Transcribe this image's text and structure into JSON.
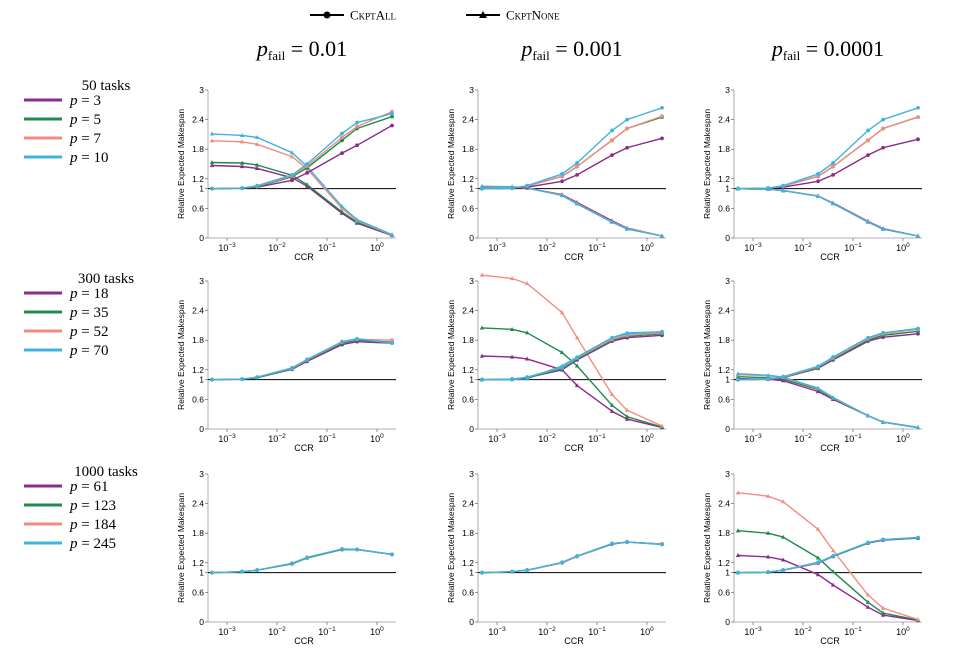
{
  "colors": {
    "p1": "#8b2b8f",
    "p2": "#1f8a4c",
    "p3": "#f28c80",
    "p4": "#3fb3e0",
    "baseline": "#000000",
    "grid": "#dddddd"
  },
  "legend": {
    "all_label": "CkptAll",
    "none_label": "CkptNone"
  },
  "columns": [
    {
      "title": "p_fail = 0.01"
    },
    {
      "title": "p_fail = 0.001"
    },
    {
      "title": "p_fail = 0.0001"
    }
  ],
  "rows": [
    {
      "title": "50 tasks",
      "p_values": [
        "p = 3",
        "p = 5",
        "p = 7",
        "p = 10"
      ]
    },
    {
      "title": "300 tasks",
      "p_values": [
        "p = 18",
        "p = 35",
        "p = 52",
        "p = 70"
      ]
    },
    {
      "title": "1000 tasks",
      "p_values": [
        "p = 61",
        "p = 123",
        "p = 184",
        "p = 245"
      ]
    }
  ],
  "chart_data": {
    "type": "line",
    "xlabel": "CCR",
    "ylabel": "Relative Expected Makespan",
    "xscale": "log",
    "x": [
      0.0005,
      0.002,
      0.004,
      0.02,
      0.04,
      0.2,
      0.4,
      2
    ],
    "xtick_labels": [
      "10^-3",
      "10^-2",
      "10^-1",
      "10^0"
    ],
    "ylim": [
      0,
      3
    ],
    "yticks": [
      0,
      0.6,
      1,
      1.2,
      1.8,
      2.4,
      3
    ],
    "ytick_labels": [
      "0",
      "0.6",
      "1",
      "1.2",
      "1.8",
      "2.4",
      "3"
    ],
    "baseline": 1,
    "legend_position": "top-center",
    "panels": [
      {
        "row": 0,
        "col": 0,
        "all": [
          [
            1,
            1.01,
            1.03,
            1.17,
            1.32,
            1.72,
            1.88,
            2.28
          ],
          [
            1,
            1.01,
            1.04,
            1.24,
            1.42,
            1.98,
            2.22,
            2.46
          ],
          [
            1,
            1.01,
            1.05,
            1.26,
            1.46,
            2.04,
            2.26,
            2.56
          ],
          [
            1,
            1.01,
            1.06,
            1.28,
            1.5,
            2.12,
            2.34,
            2.52
          ]
        ],
        "none": [
          [
            1.47,
            1.45,
            1.41,
            1.22,
            1.05,
            0.5,
            0.3,
            0.05
          ],
          [
            1.53,
            1.52,
            1.48,
            1.27,
            1.08,
            0.53,
            0.32,
            0.06
          ],
          [
            1.97,
            1.95,
            1.9,
            1.65,
            1.4,
            0.6,
            0.35,
            0.06
          ],
          [
            2.11,
            2.08,
            2.04,
            1.73,
            1.45,
            0.64,
            0.37,
            0.07
          ]
        ]
      },
      {
        "row": 0,
        "col": 1,
        "all": [
          [
            1,
            1.01,
            1.03,
            1.15,
            1.28,
            1.68,
            1.83,
            2.02
          ],
          [
            1,
            1.01,
            1.05,
            1.25,
            1.45,
            1.98,
            2.22,
            2.45
          ],
          [
            1,
            1.01,
            1.05,
            1.25,
            1.45,
            1.98,
            2.22,
            2.47
          ],
          [
            1,
            1.01,
            1.06,
            1.3,
            1.52,
            2.18,
            2.4,
            2.64
          ]
        ],
        "none": [
          [
            1.03,
            1.02,
            1.01,
            0.88,
            0.72,
            0.35,
            0.2,
            0.04
          ],
          [
            1.04,
            1.03,
            1.01,
            0.87,
            0.7,
            0.33,
            0.19,
            0.04
          ],
          [
            1.04,
            1.03,
            1.01,
            0.87,
            0.7,
            0.33,
            0.19,
            0.04
          ],
          [
            1.05,
            1.04,
            1.02,
            0.86,
            0.69,
            0.32,
            0.18,
            0.04
          ]
        ]
      },
      {
        "row": 0,
        "col": 2,
        "all": [
          [
            1,
            1.01,
            1.03,
            1.15,
            1.28,
            1.68,
            1.83,
            2.0
          ],
          [
            1,
            1.01,
            1.05,
            1.25,
            1.45,
            1.98,
            2.22,
            2.45
          ],
          [
            1,
            1.01,
            1.05,
            1.25,
            1.45,
            1.98,
            2.22,
            2.45
          ],
          [
            1,
            1.01,
            1.06,
            1.3,
            1.52,
            2.18,
            2.4,
            2.64
          ]
        ],
        "none": [
          [
            1.0,
            0.99,
            0.96,
            0.85,
            0.71,
            0.34,
            0.19,
            0.04
          ],
          [
            1.0,
            0.99,
            0.96,
            0.85,
            0.7,
            0.33,
            0.18,
            0.04
          ],
          [
            1.0,
            0.99,
            0.96,
            0.85,
            0.7,
            0.33,
            0.18,
            0.04
          ],
          [
            1.0,
            0.99,
            0.96,
            0.85,
            0.7,
            0.32,
            0.18,
            0.04
          ]
        ]
      },
      {
        "row": 1,
        "col": 0,
        "all": [
          [
            1,
            1.01,
            1.04,
            1.21,
            1.37,
            1.71,
            1.77,
            1.74
          ],
          [
            1,
            1.01,
            1.04,
            1.22,
            1.39,
            1.74,
            1.8,
            1.76
          ],
          [
            1,
            1.01,
            1.05,
            1.23,
            1.4,
            1.76,
            1.82,
            1.8
          ],
          [
            1,
            1.01,
            1.05,
            1.24,
            1.41,
            1.77,
            1.83,
            1.74
          ]
        ],
        "none": null
      },
      {
        "row": 1,
        "col": 1,
        "all": [
          [
            1,
            1.01,
            1.04,
            1.2,
            1.4,
            1.78,
            1.85,
            1.9
          ],
          [
            1,
            1.01,
            1.04,
            1.22,
            1.42,
            1.8,
            1.88,
            1.93
          ],
          [
            1,
            1.01,
            1.05,
            1.24,
            1.44,
            1.82,
            1.9,
            1.95
          ],
          [
            1,
            1.01,
            1.05,
            1.25,
            1.45,
            1.85,
            1.93,
            1.97
          ]
        ],
        "none": [
          [
            1.48,
            1.46,
            1.42,
            1.2,
            0.88,
            0.36,
            0.2,
            0.03
          ],
          [
            2.05,
            2.02,
            1.95,
            1.55,
            1.28,
            0.48,
            0.25,
            0.04
          ],
          [
            3.12,
            3.05,
            2.95,
            2.36,
            1.85,
            0.7,
            0.38,
            0.06
          ],
          [
            1.0,
            1.0,
            1.02,
            1.28,
            1.46,
            1.85,
            1.95,
            1.97
          ]
        ]
      },
      {
        "row": 1,
        "col": 2,
        "all": [
          [
            1,
            1.01,
            1.04,
            1.23,
            1.4,
            1.78,
            1.86,
            1.93
          ],
          [
            1,
            1.01,
            1.05,
            1.24,
            1.42,
            1.8,
            1.9,
            1.98
          ],
          [
            1,
            1.01,
            1.05,
            1.26,
            1.44,
            1.83,
            1.93,
            2.02
          ],
          [
            1,
            1.01,
            1.06,
            1.27,
            1.46,
            1.85,
            1.95,
            2.04
          ]
        ],
        "none": [
          [
            1.02,
            1.01,
            0.98,
            0.76,
            0.6,
            0.27,
            0.14,
            0.03
          ],
          [
            1.06,
            1.04,
            1.01,
            0.8,
            0.62,
            0.27,
            0.14,
            0.03
          ],
          [
            1.1,
            1.08,
            1.04,
            0.82,
            0.63,
            0.27,
            0.14,
            0.03
          ],
          [
            1.12,
            1.09,
            1.05,
            0.83,
            0.64,
            0.27,
            0.14,
            0.03
          ]
        ]
      },
      {
        "row": 2,
        "col": 0,
        "all": [
          [
            1,
            1.02,
            1.05,
            1.18,
            1.3,
            1.47,
            1.47,
            1.37
          ],
          [
            1,
            1.02,
            1.05,
            1.18,
            1.3,
            1.47,
            1.47,
            1.37
          ],
          [
            1,
            1.02,
            1.05,
            1.19,
            1.31,
            1.48,
            1.47,
            1.37
          ],
          [
            1,
            1.02,
            1.05,
            1.19,
            1.31,
            1.48,
            1.47,
            1.37
          ]
        ],
        "none": null
      },
      {
        "row": 2,
        "col": 1,
        "all": [
          [
            1,
            1.02,
            1.05,
            1.2,
            1.33,
            1.58,
            1.62,
            1.58
          ],
          [
            1,
            1.02,
            1.05,
            1.2,
            1.33,
            1.58,
            1.62,
            1.58
          ],
          [
            1,
            1.02,
            1.05,
            1.2,
            1.33,
            1.59,
            1.62,
            1.58
          ],
          [
            1,
            1.02,
            1.05,
            1.21,
            1.34,
            1.59,
            1.62,
            1.57
          ]
        ],
        "none": null
      },
      {
        "row": 2,
        "col": 2,
        "all": [
          [
            1,
            1.01,
            1.05,
            1.19,
            1.33,
            1.6,
            1.66,
            1.7
          ],
          [
            1,
            1.01,
            1.05,
            1.2,
            1.33,
            1.6,
            1.67,
            1.7
          ],
          [
            1,
            1.01,
            1.05,
            1.2,
            1.34,
            1.61,
            1.67,
            1.71
          ],
          [
            1,
            1.01,
            1.05,
            1.21,
            1.34,
            1.61,
            1.67,
            1.71
          ]
        ],
        "none": [
          [
            1.35,
            1.32,
            1.26,
            0.96,
            0.75,
            0.3,
            0.14,
            0.03
          ],
          [
            1.85,
            1.8,
            1.72,
            1.3,
            1.02,
            0.4,
            0.18,
            0.04
          ],
          [
            2.62,
            2.55,
            2.44,
            1.88,
            1.45,
            0.55,
            0.28,
            0.05
          ],
          [
            1.0,
            1.01,
            1.05,
            1.21,
            1.33,
            1.6,
            1.66,
            1.7
          ]
        ]
      }
    ]
  }
}
